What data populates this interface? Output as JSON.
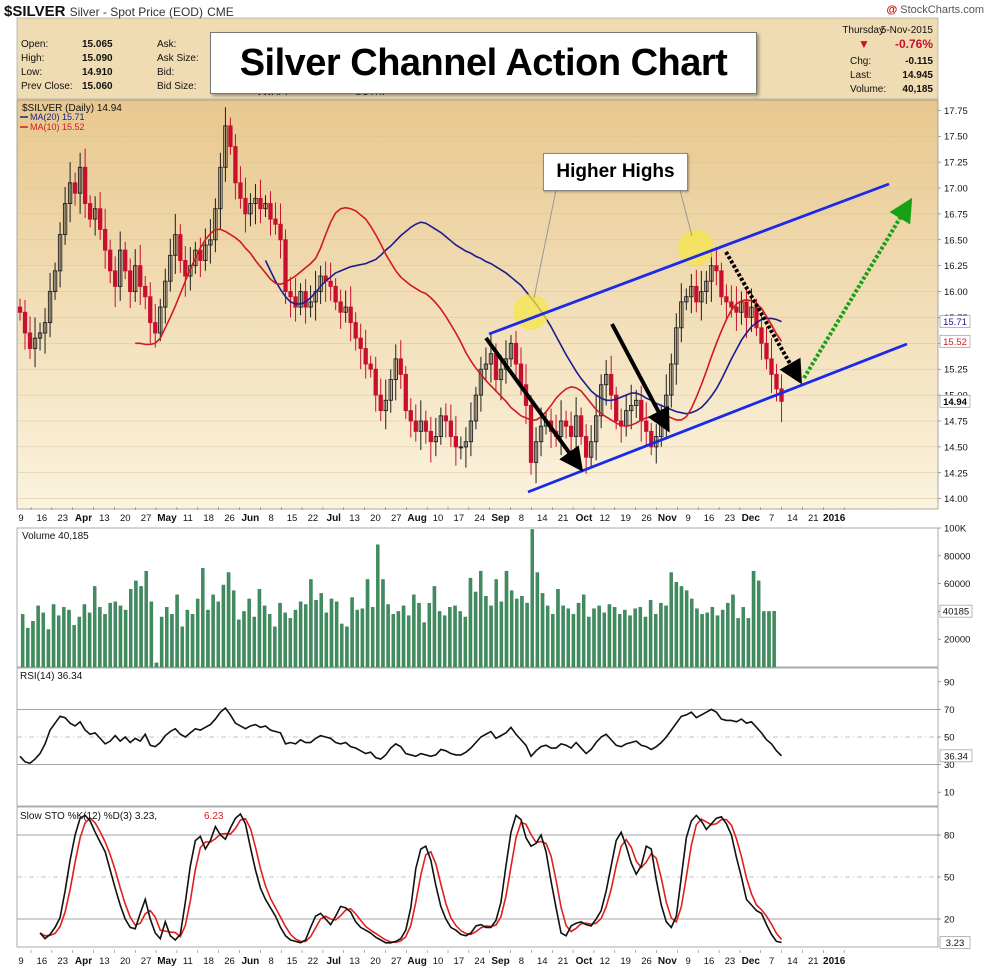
{
  "header": {
    "symbol": "$SILVER",
    "description": "Silver - Spot Price (EOD)",
    "exchange": "CME",
    "brand": "StockCharts.com",
    "brand_mark": "@"
  },
  "quote": {
    "left": [
      {
        "label": "Open:",
        "value": "15.065"
      },
      {
        "label": "High:",
        "value": "15.090"
      },
      {
        "label": "Low:",
        "value": "14.910"
      },
      {
        "label": "Prev Close:",
        "value": "15.060"
      }
    ],
    "middle": [
      "Ask:",
      "Ask Size:",
      "Bid:",
      "Bid Size:"
    ],
    "extra": [
      "VWAP:",
      "SCTR:"
    ],
    "date_day": "Thursday",
    "date": "5-Nov-2015",
    "pct_change": "-0.76%",
    "right": [
      {
        "label": "Chg:",
        "value": "-0.115"
      },
      {
        "label": "Last:",
        "value": "14.945"
      },
      {
        "label": "Volume:",
        "value": "40,185"
      }
    ],
    "down_arrow": "▼"
  },
  "annotations": {
    "title": "Silver Channel Action Chart",
    "higher_highs": "Higher Highs"
  },
  "colors": {
    "panel_bg": "#efd9ae",
    "up": "#1e1e1e",
    "down": "#c8102e",
    "ma20": "#1c1c8c",
    "ma10": "#d01a20",
    "volume": "#3f8d5f",
    "channel": "#1a2be8",
    "arrow_black": "#000000",
    "arrow_green": "#17a116",
    "highlight": "#f5e64a",
    "stoch_d": "#e02020"
  },
  "chart_data": [
    {
      "type": "candlestick",
      "legend": [
        "$SILVER (Daily) 14.94",
        "MA(20) 15.71",
        "MA(10) 15.52"
      ],
      "series_names": [
        "$SILVER",
        "MA(20)",
        "MA(10)"
      ],
      "ylim": [
        13.9,
        17.85
      ],
      "y_ticks": [
        "17.75",
        "17.50",
        "17.25",
        "17.00",
        "16.75",
        "16.50",
        "16.25",
        "16.00",
        "15.75",
        "15.50",
        "15.25",
        "15.00",
        "14.75",
        "14.50",
        "14.25",
        "14.00"
      ],
      "y_ticks_num": [
        17.75,
        17.5,
        17.25,
        17.0,
        16.75,
        16.5,
        16.25,
        16.0,
        15.75,
        15.5,
        15.25,
        15.0,
        14.75,
        14.5,
        14.25,
        14.0
      ],
      "last_labels": [
        "15.71",
        "15.52",
        "14.94"
      ],
      "x_ticks": [
        "9",
        "16",
        "23",
        "Apr",
        "13",
        "20",
        "27",
        "May",
        "11",
        "18",
        "26",
        "Jun",
        "8",
        "15",
        "22",
        "Jul",
        "13",
        "20",
        "27",
        "Aug",
        "10",
        "17",
        "24",
        "Sep",
        "8",
        "14",
        "21",
        "Oct",
        "12",
        "19",
        "26",
        "Nov",
        "9",
        "16",
        "23",
        "Dec",
        "7",
        "14",
        "21",
        "2016"
      ],
      "x_tick_bold": [
        "Apr",
        "May",
        "Jun",
        "Jul",
        "Aug",
        "Sep",
        "Oct",
        "Nov",
        "Dec",
        "2016"
      ],
      "close": [
        15.8,
        15.6,
        15.45,
        15.55,
        15.6,
        15.7,
        16.0,
        16.2,
        16.55,
        16.85,
        17.05,
        16.95,
        17.2,
        16.85,
        16.7,
        16.8,
        16.6,
        16.4,
        16.2,
        16.05,
        16.4,
        16.2,
        16.0,
        16.25,
        16.05,
        15.95,
        15.7,
        15.6,
        15.85,
        16.1,
        16.35,
        16.55,
        16.3,
        16.15,
        16.25,
        16.4,
        16.3,
        16.45,
        16.5,
        16.8,
        17.2,
        17.6,
        17.4,
        17.05,
        16.9,
        16.75,
        16.85,
        16.9,
        16.8,
        16.85,
        16.7,
        16.65,
        16.5,
        16.0,
        15.95,
        15.85,
        16.0,
        15.85,
        15.9,
        16.0,
        16.15,
        16.1,
        16.05,
        15.9,
        15.8,
        15.85,
        15.7,
        15.55,
        15.45,
        15.3,
        15.25,
        15.0,
        14.85,
        14.95,
        15.15,
        15.35,
        15.2,
        14.85,
        14.75,
        14.65,
        14.75,
        14.65,
        14.55,
        14.6,
        14.8,
        14.75,
        14.6,
        14.5,
        14.5,
        14.55,
        14.75,
        15.0,
        15.25,
        15.3,
        15.4,
        15.15,
        15.25,
        15.35,
        15.5,
        15.3,
        15.1,
        14.9,
        14.35,
        14.55,
        14.7,
        14.75,
        14.65,
        14.6,
        14.75,
        14.7,
        14.6,
        14.8,
        14.6,
        14.4,
        14.55,
        14.8,
        15.1,
        15.2,
        15.0,
        14.75,
        14.7,
        14.85,
        14.9,
        14.95,
        14.75,
        14.65,
        14.5,
        14.6,
        14.75,
        15.0,
        15.3,
        15.65,
        15.9,
        15.95,
        16.05,
        15.9,
        16.0,
        16.1,
        16.25,
        16.2,
        15.95,
        15.9,
        15.85,
        15.8,
        15.9,
        15.75,
        15.85,
        15.65,
        15.5,
        15.35,
        15.2,
        15.06,
        14.94
      ],
      "ma10": [
        15.5,
        15.5,
        15.49,
        15.49,
        15.5,
        15.55,
        15.65,
        15.75,
        15.86,
        15.98,
        16.1,
        16.22,
        16.32,
        16.42,
        16.5,
        16.56,
        16.6,
        16.6,
        16.58,
        16.55,
        16.52,
        16.48,
        16.42,
        16.37,
        16.3,
        16.24,
        16.18,
        16.12,
        16.08,
        16.07,
        16.09,
        16.12,
        16.15,
        16.19,
        16.23,
        16.27,
        16.32,
        16.42,
        16.55,
        16.67,
        16.76,
        16.8,
        16.81,
        16.8,
        16.78,
        16.74,
        16.7,
        16.63,
        16.55,
        16.46,
        16.36,
        16.28,
        16.2,
        16.14,
        16.1,
        16.06,
        16.03,
        16.0,
        15.98,
        15.94,
        15.89,
        15.83,
        15.76,
        15.68,
        15.6,
        15.51,
        15.41,
        15.33,
        15.26,
        15.2,
        15.14,
        15.09,
        15.04,
        14.99,
        14.94,
        14.88,
        14.84,
        14.8,
        14.78,
        14.76,
        14.76,
        14.79,
        14.84,
        14.9,
        14.97,
        15.02,
        15.06,
        15.08,
        15.07,
        15.04,
        14.98,
        14.92,
        14.86,
        14.82,
        14.79,
        14.76,
        14.73,
        14.71,
        14.7,
        14.71,
        14.73,
        14.76,
        14.78,
        14.79,
        14.8,
        14.81,
        14.8,
        14.78,
        14.76,
        14.76,
        14.79,
        14.87,
        14.98,
        15.1,
        15.23,
        15.37,
        15.5,
        15.62,
        15.73,
        15.82,
        15.88,
        15.91,
        15.92,
        15.91,
        15.88,
        15.84,
        15.76,
        15.68,
        15.59,
        15.52
      ],
      "ma20": [
        16.3,
        16.2,
        16.1,
        16.02,
        15.95,
        15.9,
        15.88,
        15.88,
        15.9,
        15.94,
        15.99,
        16.05,
        16.1,
        16.14,
        16.18,
        16.2,
        16.22,
        16.24,
        16.25,
        16.26,
        16.27,
        16.29,
        16.31,
        16.35,
        16.4,
        16.44,
        16.49,
        16.54,
        16.58,
        16.62,
        16.65,
        16.67,
        16.66,
        16.63,
        16.6,
        16.57,
        16.53,
        16.49,
        16.45,
        16.42,
        16.39,
        16.37,
        16.34,
        16.32,
        16.29,
        16.27,
        16.24,
        16.21,
        16.18,
        16.14,
        16.1,
        16.06,
        16.0,
        15.94,
        15.88,
        15.81,
        15.74,
        15.66,
        15.57,
        15.48,
        15.39,
        15.31,
        15.23,
        15.16,
        15.1,
        15.04,
        15.0,
        14.97,
        14.95,
        14.95,
        14.96,
        14.98,
        15.0,
        15.02,
        15.02,
        15.0,
        14.97,
        14.95,
        14.92,
        14.9,
        14.88,
        14.86,
        14.84,
        14.83,
        14.82,
        14.83,
        14.85,
        14.88,
        14.93,
        14.99,
        15.06,
        15.15,
        15.25,
        15.35,
        15.44,
        15.53,
        15.6,
        15.66,
        15.7,
        15.73,
        15.74,
        15.74,
        15.73,
        15.71
      ]
    },
    {
      "type": "bar",
      "legend": "Volume 40,185",
      "series_names": [
        "Volume"
      ],
      "ylim": [
        0,
        100000
      ],
      "y_ticks": [
        "100K",
        "80000",
        "60000",
        "40000",
        "20000"
      ],
      "y_ticks_num": [
        100000,
        80000,
        60000,
        40000,
        20000
      ],
      "last_label": "40185",
      "values": [
        38000,
        28000,
        33000,
        44000,
        39000,
        27000,
        45000,
        37000,
        43000,
        41000,
        30000,
        36000,
        45000,
        39000,
        58000,
        43000,
        38000,
        46000,
        47000,
        44000,
        41000,
        56000,
        62000,
        58000,
        69000,
        47000,
        3000,
        36000,
        43000,
        38000,
        52000,
        29000,
        41000,
        38000,
        49000,
        71000,
        41000,
        52000,
        47000,
        59000,
        68000,
        55000,
        34000,
        40000,
        49000,
        36000,
        56000,
        44000,
        38000,
        29000,
        46000,
        39000,
        35000,
        41000,
        47000,
        45000,
        63000,
        48000,
        53000,
        39000,
        49000,
        47000,
        31000,
        29000,
        50000,
        41000,
        42000,
        63000,
        43000,
        88000,
        63000,
        45000,
        38000,
        40000,
        44000,
        37000,
        52000,
        46000,
        32000,
        46000,
        58000,
        40000,
        37000,
        43000,
        44000,
        40000,
        36000,
        64000,
        54000,
        69000,
        51000,
        44000,
        63000,
        47000,
        69000,
        55000,
        49000,
        51000,
        46000,
        99000,
        68000,
        53000,
        44000,
        38000,
        56000,
        44000,
        42000,
        38000,
        46000,
        52000,
        36000,
        42000,
        44000,
        39000,
        45000,
        43000,
        38000,
        41000,
        37000,
        42000,
        43000,
        36000,
        48000,
        38000,
        46000,
        44000,
        68000,
        61000,
        58000,
        55000,
        49000,
        42000,
        38000,
        39000,
        43000,
        37000,
        41000,
        46000,
        52000,
        35000,
        43000,
        35000,
        69000,
        62000,
        40000,
        40000,
        40185
      ]
    },
    {
      "type": "line",
      "legend": "RSI(14) 36.34",
      "series_names": [
        "RSI(14)"
      ],
      "ylim": [
        0,
        100
      ],
      "y_ticks": [
        "90",
        "70",
        "50",
        "30",
        "10"
      ],
      "y_ticks_num": [
        90,
        70,
        50,
        30,
        10
      ],
      "last_label": "36.34",
      "values": [
        36,
        32,
        31,
        34,
        38,
        45,
        55,
        60,
        65,
        64,
        60,
        58,
        61,
        55,
        52,
        53,
        49,
        45,
        47,
        51,
        47,
        50,
        46,
        49,
        47,
        52,
        44,
        43,
        46,
        51,
        54,
        56,
        52,
        50,
        53,
        56,
        55,
        57,
        59,
        63,
        68,
        71,
        66,
        60,
        58,
        56,
        58,
        59,
        57,
        58,
        55,
        54,
        53,
        45,
        46,
        45,
        48,
        46,
        46,
        49,
        51,
        50,
        49,
        46,
        45,
        46,
        43,
        42,
        40,
        38,
        39,
        35,
        34,
        37,
        42,
        45,
        43,
        38,
        37,
        36,
        38,
        37,
        36,
        37,
        41,
        40,
        38,
        37,
        37,
        39,
        42,
        46,
        50,
        52,
        54,
        49,
        51,
        53,
        57,
        52,
        48,
        44,
        36,
        40,
        43,
        44,
        42,
        42,
        45,
        44,
        42,
        46,
        42,
        38,
        41,
        46,
        50,
        52,
        48,
        44,
        43,
        45,
        46,
        47,
        44,
        43,
        41,
        43,
        46,
        50,
        55,
        60,
        65,
        66,
        68,
        64,
        66,
        68,
        70,
        68,
        63,
        62,
        62,
        61,
        63,
        60,
        61,
        57,
        53,
        48,
        45,
        40,
        36.34
      ]
    },
    {
      "type": "line",
      "legend": "Slow STO %K(12) %D(3) 3.23, 6.23",
      "legend_label": "Slow STO %K(12) %D(3) 3.23,",
      "legend_d": "6.23",
      "series_names": [
        "%K",
        "%D"
      ],
      "ylim": [
        0,
        100
      ],
      "y_ticks": [
        "80",
        "50",
        "20"
      ],
      "y_ticks_num": [
        80,
        50,
        20
      ],
      "last_label": "3.23",
      "k": [
        10,
        6,
        9,
        14,
        21,
        40,
        62,
        80,
        92,
        94,
        90,
        82,
        75,
        68,
        55,
        42,
        30,
        20,
        14,
        13,
        24,
        34,
        20,
        10,
        6,
        18,
        8,
        5,
        9,
        32,
        58,
        76,
        79,
        70,
        76,
        86,
        80,
        77,
        85,
        92,
        95,
        88,
        71,
        55,
        42,
        34,
        28,
        22,
        14,
        8,
        5,
        4,
        3,
        5,
        14,
        22,
        24,
        20,
        16,
        22,
        29,
        28,
        25,
        18,
        14,
        12,
        10,
        7,
        5,
        3,
        3,
        4,
        6,
        12,
        28,
        56,
        70,
        72,
        62,
        44,
        29,
        20,
        14,
        12,
        9,
        8,
        10,
        15,
        16,
        14,
        14,
        19,
        32,
        58,
        82,
        94,
        91,
        78,
        72,
        74,
        80,
        68,
        47,
        28,
        10,
        8,
        15,
        17,
        18,
        16,
        15,
        20,
        26,
        40,
        58,
        76,
        82,
        72,
        60,
        52,
        58,
        72,
        70,
        48,
        30,
        18,
        14,
        22,
        50,
        78,
        90,
        94,
        90,
        84,
        88,
        92,
        93,
        88,
        80,
        64,
        50,
        34,
        30,
        26,
        24,
        16,
        9,
        4,
        3.23
      ]
    }
  ]
}
